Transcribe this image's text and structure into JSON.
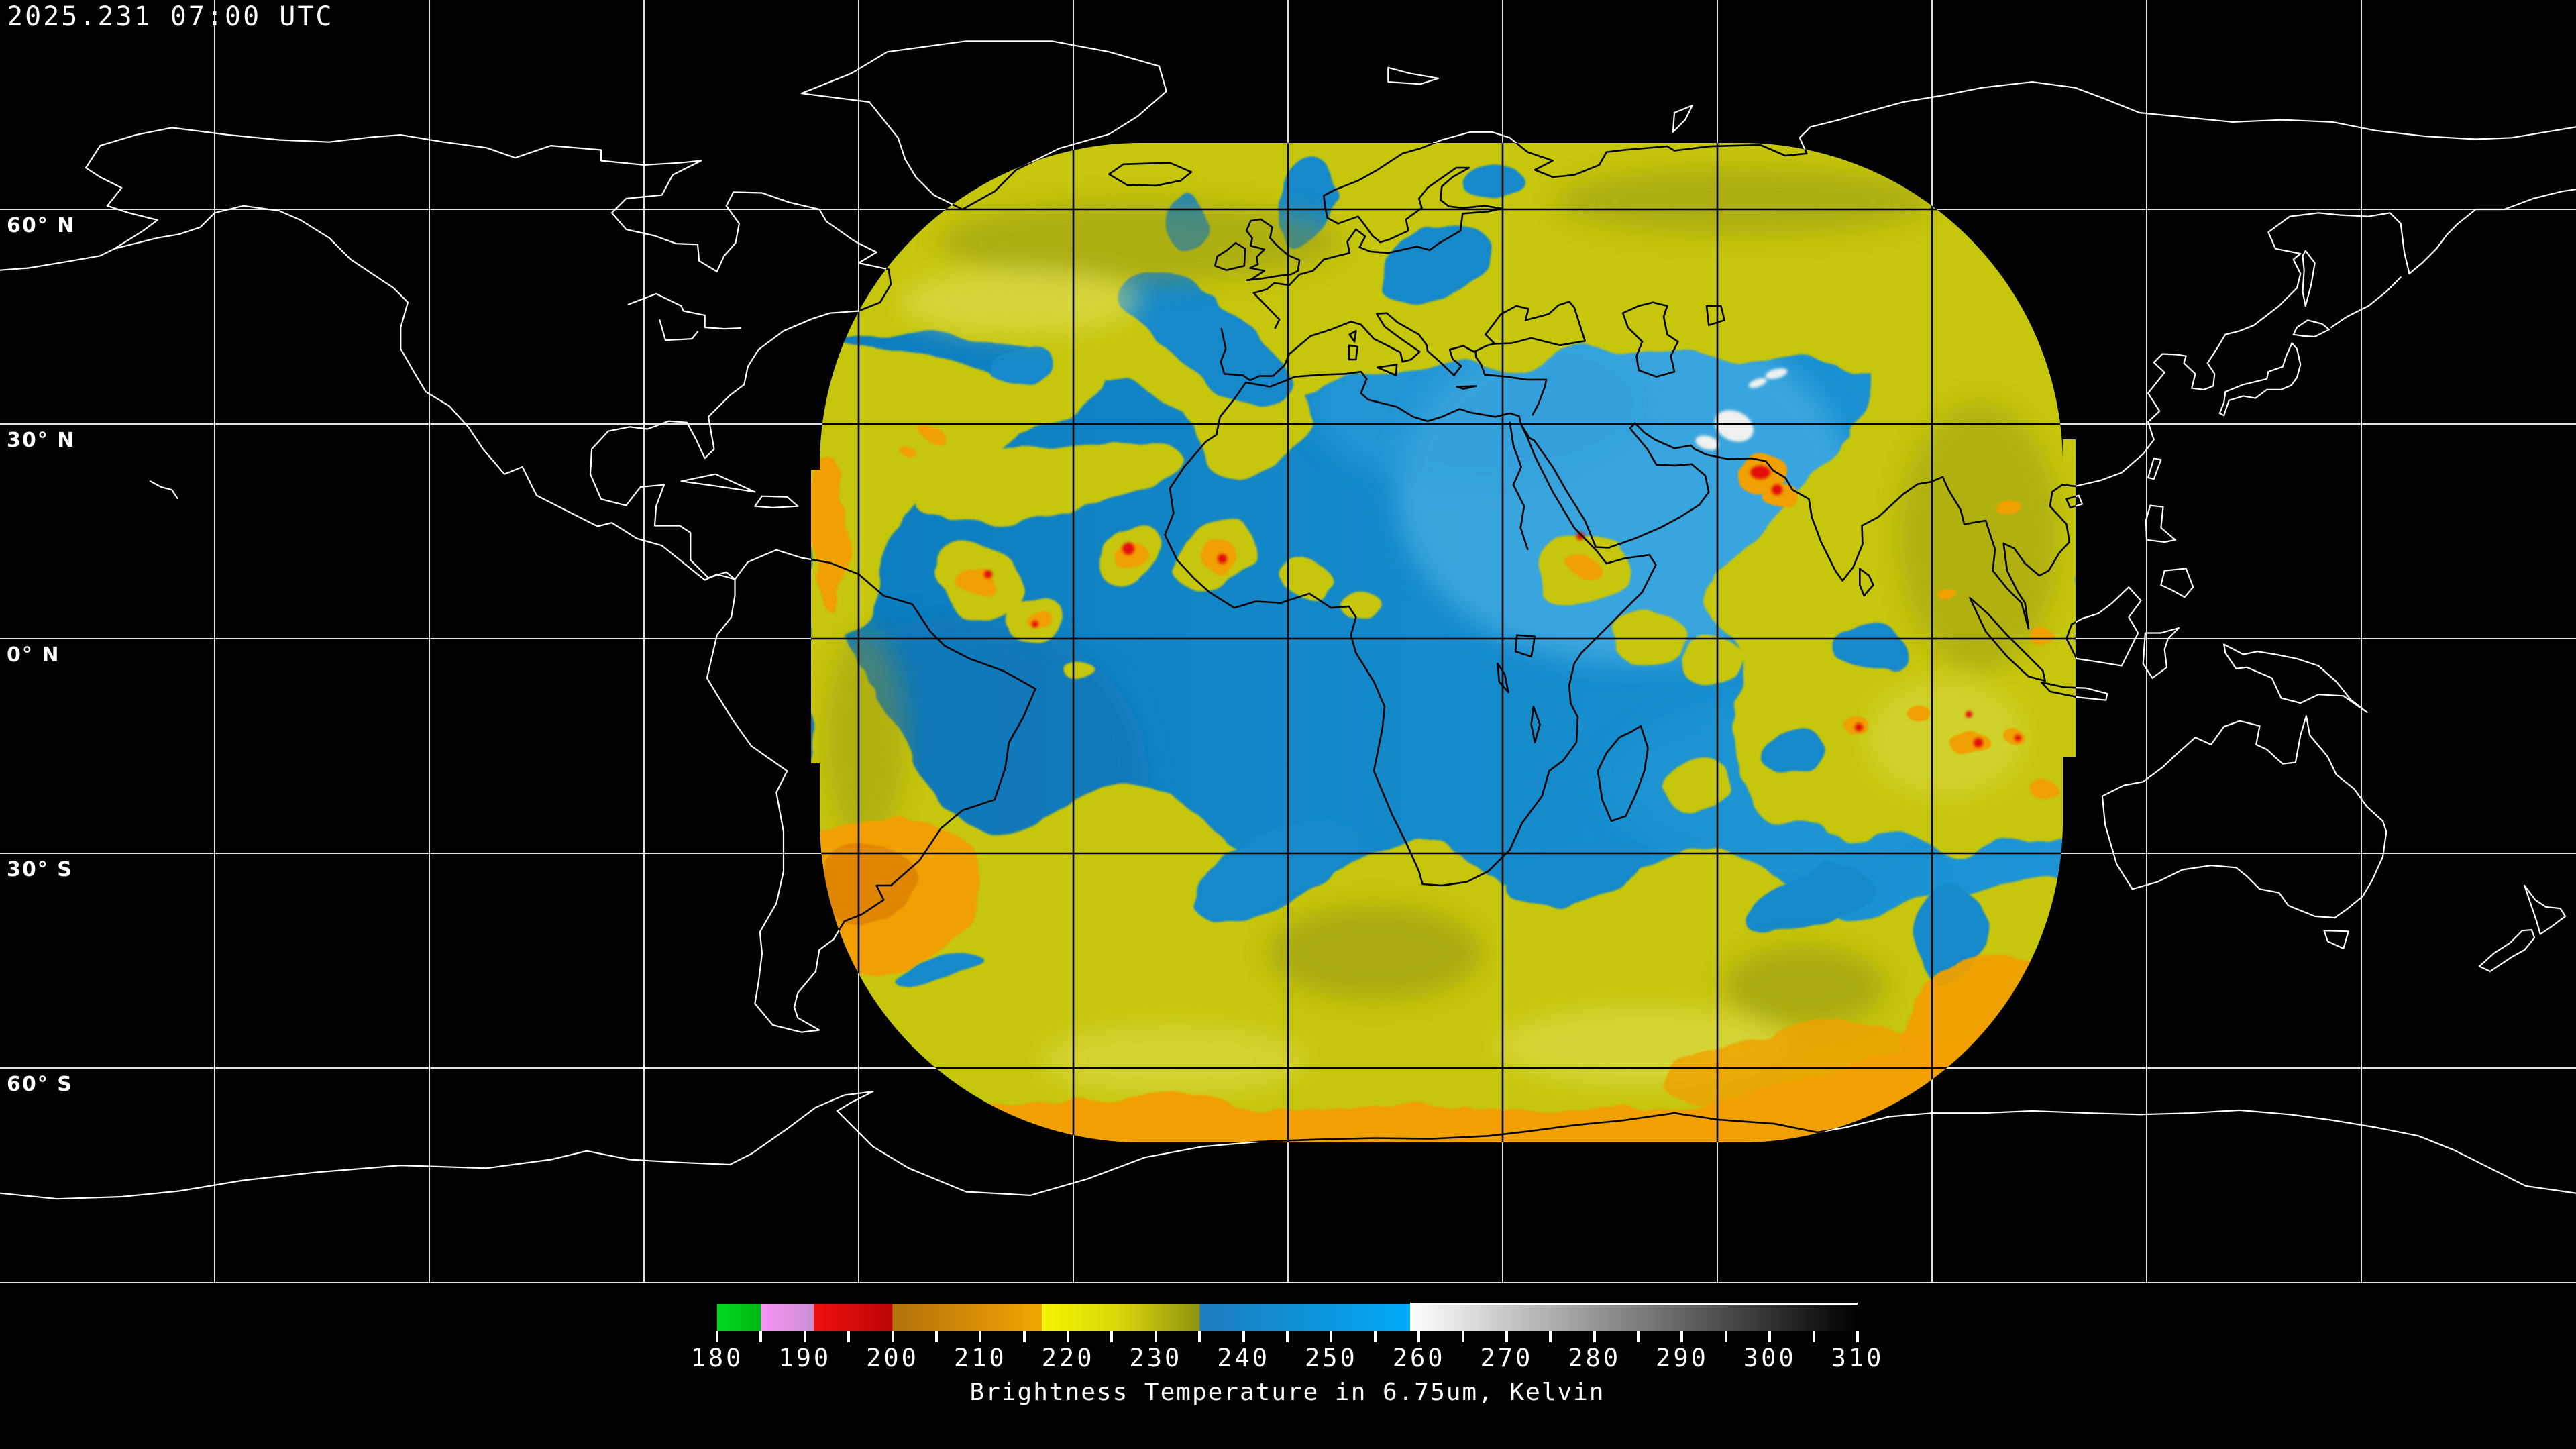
{
  "title": {
    "timestamp": "2025.231 07:00 UTC"
  },
  "map": {
    "background_color": "#000000",
    "graticule": {
      "spacing_deg": 30,
      "outside_color": "#e2e2e2",
      "inside_swath_color": "#000000"
    },
    "coastline": {
      "outside_color": "#ffffff",
      "inside_swath_color": "#000000"
    },
    "latitude_labels": [
      {
        "text": "60° N",
        "lat": 60
      },
      {
        "text": "30° N",
        "lat": 30
      },
      {
        "text": "0° N",
        "lat": 0
      },
      {
        "text": "30° S",
        "lat": -30
      },
      {
        "text": "60° S",
        "lat": -60
      }
    ]
  },
  "swath": {
    "palette": {
      "blue_deep": "#0c7cbd",
      "blue_mid": "#1489ca",
      "blue_light": "#3fa9e0",
      "gap_blue": "#1489ca",
      "yellow": "#c6c60a",
      "olive": "#8f9012",
      "yellow_pale": "#e6e468",
      "orange": "#f0a004",
      "orange_deep": "#df8506",
      "red": "#e31111",
      "white_patch": "#eff1ee"
    }
  },
  "colorbar": {
    "caption": "Brightness Temperature in 6.75um, Kelvin",
    "min": 180,
    "max": 310,
    "tick_step": 5,
    "label_step": 10,
    "labels": [
      "180",
      "190",
      "200",
      "210",
      "220",
      "230",
      "240",
      "250",
      "260",
      "270",
      "280",
      "290",
      "300",
      "310"
    ],
    "tick_color": "#ffffff",
    "label_color": "#ffffff",
    "gradient_stops": [
      {
        "value": 180,
        "color": "#00dc1e"
      },
      {
        "value": 185,
        "color": "#00b414"
      },
      {
        "value": 185,
        "color": "#fb93f8"
      },
      {
        "value": 191,
        "color": "#c98fd2"
      },
      {
        "value": 191,
        "color": "#f01010"
      },
      {
        "value": 200,
        "color": "#bb0505"
      },
      {
        "value": 200,
        "color": "#b1720a"
      },
      {
        "value": 210,
        "color": "#d98e06"
      },
      {
        "value": 217,
        "color": "#f0a800"
      },
      {
        "value": 217,
        "color": "#f6f400"
      },
      {
        "value": 226,
        "color": "#d8d60a"
      },
      {
        "value": 235,
        "color": "#8f9010"
      },
      {
        "value": 235,
        "color": "#1e7cbc"
      },
      {
        "value": 248,
        "color": "#0d94da"
      },
      {
        "value": 259,
        "color": "#00a9f7"
      },
      {
        "value": 259,
        "color": "#ffffff"
      },
      {
        "value": 310,
        "color": "#000000"
      }
    ]
  }
}
